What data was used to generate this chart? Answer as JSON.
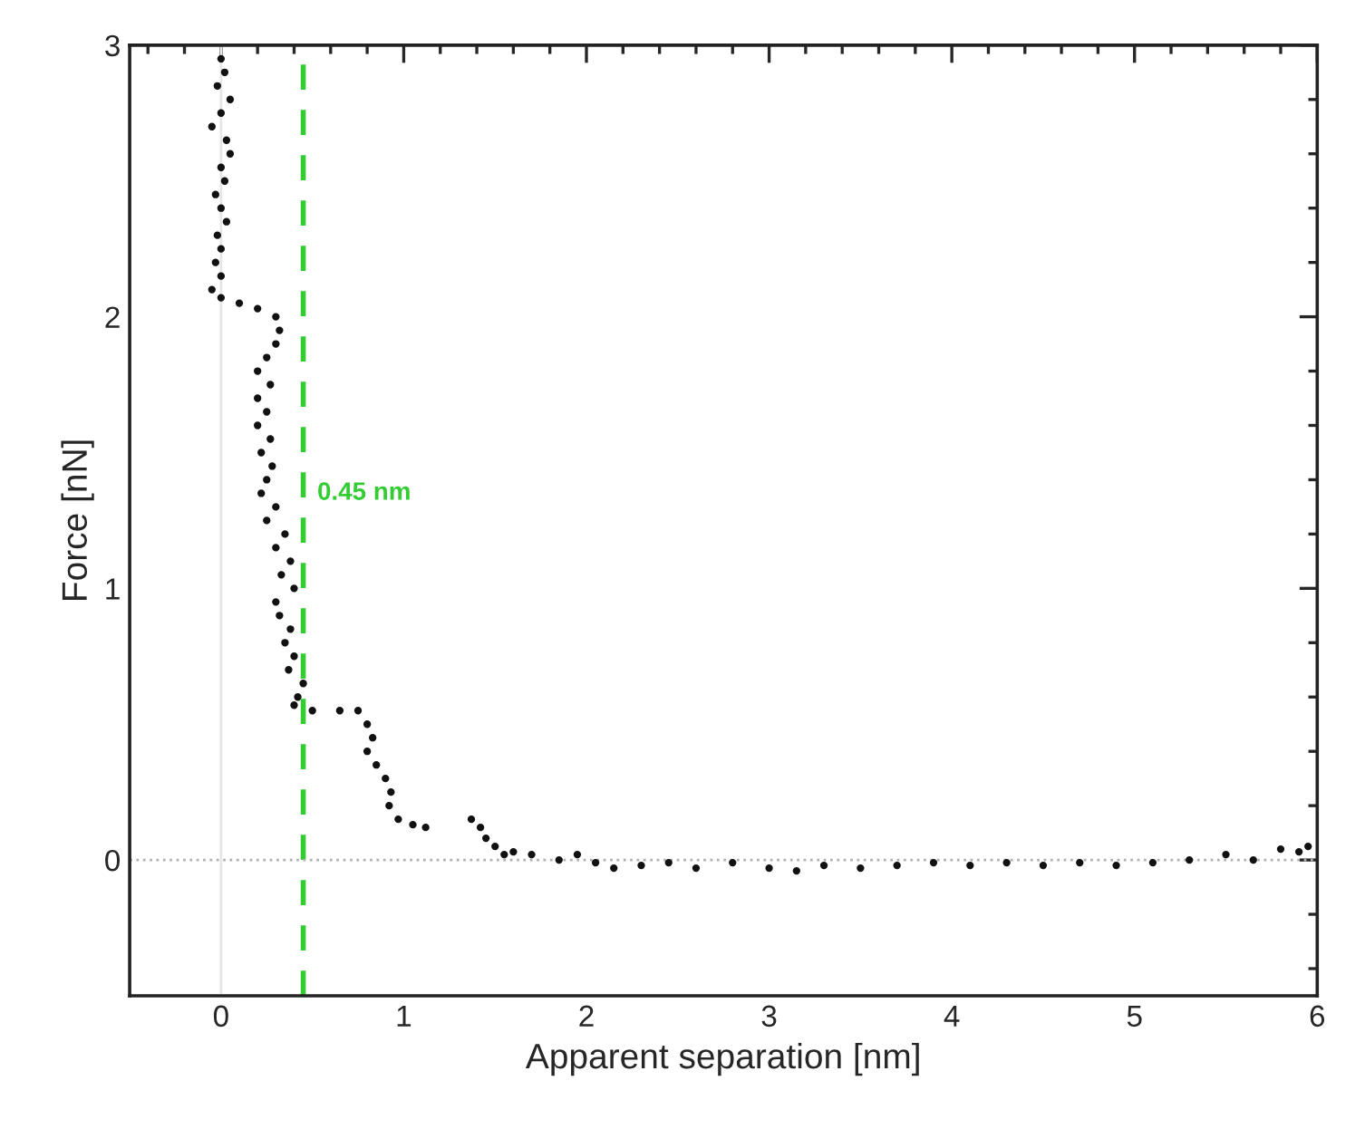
{
  "chart_data": {
    "type": "scatter",
    "xlabel": "Apparent separation [nm]",
    "ylabel": "Force [nN]",
    "xlim": [
      -0.5,
      6.0
    ],
    "ylim": [
      -0.5,
      3.0
    ],
    "xticks": [
      {
        "value": -0.4,
        "label": null
      },
      {
        "value": -0.2,
        "label": null
      },
      0,
      {
        "value": 0.2,
        "label": null
      },
      {
        "value": 0.4,
        "label": null
      },
      {
        "value": 0.6,
        "label": null
      },
      {
        "value": 0.8,
        "label": null
      },
      1,
      {
        "value": 1.2,
        "label": null
      },
      {
        "value": 1.4,
        "label": null
      },
      {
        "value": 1.6,
        "label": null
      },
      {
        "value": 1.8,
        "label": null
      },
      2,
      {
        "value": 2.2,
        "label": null
      },
      {
        "value": 2.4,
        "label": null
      },
      {
        "value": 2.6,
        "label": null
      },
      {
        "value": 2.8,
        "label": null
      },
      3,
      {
        "value": 3.2,
        "label": null
      },
      {
        "value": 3.4,
        "label": null
      },
      {
        "value": 3.6,
        "label": null
      },
      {
        "value": 3.8,
        "label": null
      },
      4,
      {
        "value": 4.2,
        "label": null
      },
      {
        "value": 4.4,
        "label": null
      },
      {
        "value": 4.6,
        "label": null
      },
      {
        "value": 4.8,
        "label": null
      },
      5,
      {
        "value": 5.2,
        "label": null
      },
      {
        "value": 5.4,
        "label": null
      },
      {
        "value": 5.6,
        "label": null
      },
      {
        "value": 5.8,
        "label": null
      },
      6
    ],
    "yticks": [
      {
        "value": -0.4,
        "label": null
      },
      {
        "value": -0.2,
        "label": null
      },
      0,
      {
        "value": 0.2,
        "label": null
      },
      {
        "value": 0.4,
        "label": null
      },
      {
        "value": 0.6,
        "label": null
      },
      {
        "value": 0.8,
        "label": null
      },
      1,
      {
        "value": 1.2,
        "label": null
      },
      {
        "value": 1.4,
        "label": null
      },
      {
        "value": 1.6,
        "label": null
      },
      {
        "value": 1.8,
        "label": null
      },
      2,
      {
        "value": 2.2,
        "label": null
      },
      {
        "value": 2.4,
        "label": null
      },
      {
        "value": 2.6,
        "label": null
      },
      {
        "value": 2.8,
        "label": null
      },
      3
    ],
    "grid": false,
    "legend": false,
    "marker": "circle",
    "ref_lines": [
      {
        "axis": "x",
        "value": 0.45,
        "label": "0.45 nm",
        "color": "#33cc33",
        "line_style": "dashed"
      },
      {
        "axis": "y",
        "value": 0,
        "label": null,
        "color": "#b0b0b0",
        "line_style": "dotted"
      },
      {
        "axis": "x",
        "value": 0,
        "label": null,
        "color": "#e6e6e6",
        "line_style": "solid"
      }
    ],
    "series": [
      {
        "color": "#111111",
        "x": [
          0.0,
          0.02,
          -0.02,
          0.05,
          0.0,
          -0.05,
          0.03,
          0.05,
          0.0,
          0.02,
          -0.03,
          0.0,
          0.03,
          -0.02,
          0.0,
          -0.03,
          0.0,
          -0.05,
          0.0,
          0.1,
          0.2,
          0.3,
          0.32,
          0.3,
          0.25,
          0.2,
          0.27,
          0.2,
          0.25,
          0.2,
          0.27,
          0.22,
          0.28,
          0.25,
          0.22,
          0.3,
          0.25,
          0.35,
          0.3,
          0.38,
          0.33,
          0.4,
          0.3,
          0.32,
          0.38,
          0.35,
          0.4,
          0.37,
          0.45,
          0.42,
          0.4,
          0.5,
          0.65,
          0.75,
          0.8,
          0.83,
          0.8,
          0.85,
          0.9,
          0.93,
          0.92,
          0.97,
          1.05,
          1.12,
          1.37,
          1.42,
          1.45,
          1.5,
          1.55,
          1.6,
          1.7,
          1.85,
          1.95,
          2.05,
          2.15,
          2.3,
          2.45,
          2.6,
          2.8,
          3.0,
          3.15,
          3.3,
          3.5,
          3.7,
          3.9,
          4.1,
          4.3,
          4.5,
          4.7,
          4.9,
          5.1,
          5.3,
          5.5,
          5.65,
          5.8,
          5.9,
          5.95
        ],
        "values": [
          2.95,
          2.9,
          2.85,
          2.8,
          2.75,
          2.7,
          2.65,
          2.6,
          2.55,
          2.5,
          2.45,
          2.4,
          2.35,
          2.3,
          2.25,
          2.2,
          2.15,
          2.1,
          2.07,
          2.05,
          2.03,
          2.0,
          1.95,
          1.9,
          1.85,
          1.8,
          1.75,
          1.7,
          1.65,
          1.6,
          1.55,
          1.5,
          1.45,
          1.4,
          1.35,
          1.3,
          1.25,
          1.2,
          1.15,
          1.1,
          1.05,
          1.0,
          0.95,
          0.9,
          0.85,
          0.8,
          0.75,
          0.7,
          0.65,
          0.6,
          0.57,
          0.55,
          0.55,
          0.55,
          0.5,
          0.45,
          0.4,
          0.35,
          0.3,
          0.25,
          0.2,
          0.15,
          0.13,
          0.12,
          0.15,
          0.12,
          0.08,
          0.05,
          0.02,
          0.03,
          0.02,
          0.0,
          0.02,
          -0.01,
          -0.03,
          -0.02,
          -0.01,
          -0.03,
          -0.01,
          -0.03,
          -0.04,
          -0.02,
          -0.03,
          -0.02,
          -0.01,
          -0.02,
          -0.01,
          -0.02,
          -0.01,
          -0.02,
          -0.01,
          0.0,
          0.02,
          0.0,
          0.04,
          0.03,
          0.05
        ]
      }
    ]
  }
}
